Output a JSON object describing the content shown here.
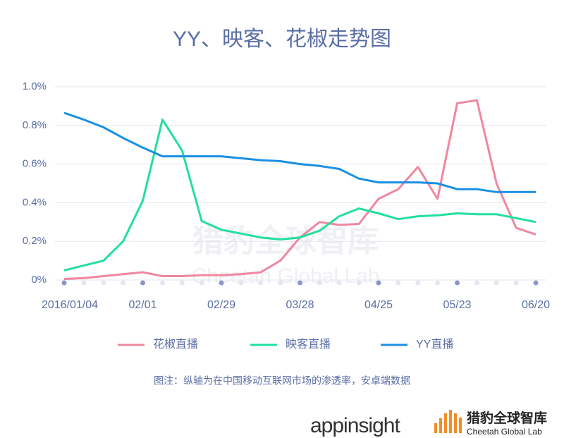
{
  "chart_data": {
    "type": "line",
    "title": "YY、映客、花椒走势图",
    "categories": [
      "2016/01/04",
      null,
      null,
      null,
      "02/01",
      null,
      null,
      null,
      "02/29",
      null,
      null,
      null,
      "03/28",
      null,
      null,
      null,
      "04/25",
      null,
      null,
      null,
      "05/23",
      null,
      null,
      null,
      "06/20"
    ],
    "series": [
      {
        "name": "花椒直播",
        "color": "#f0879f",
        "values": [
          0.005,
          0.01,
          0.02,
          0.03,
          0.04,
          0.02,
          0.02,
          0.025,
          0.025,
          0.03,
          0.04,
          0.1,
          0.22,
          0.3,
          0.285,
          0.29,
          0.42,
          0.47,
          0.585,
          0.42,
          0.915,
          0.93,
          0.5,
          0.27,
          0.235
        ]
      },
      {
        "name": "映客直播",
        "color": "#22e09c",
        "values": [
          0.05,
          0.075,
          0.1,
          0.2,
          0.41,
          0.83,
          0.67,
          0.305,
          0.26,
          0.24,
          0.22,
          0.21,
          0.22,
          0.255,
          0.33,
          0.37,
          0.345,
          0.315,
          0.33,
          0.335,
          0.345,
          0.34,
          0.34,
          0.32,
          0.3
        ]
      },
      {
        "name": "YY直播",
        "color": "#1a8fe3",
        "values": [
          0.865,
          0.83,
          0.79,
          0.735,
          0.685,
          0.64,
          0.64,
          0.64,
          0.64,
          0.63,
          0.62,
          0.615,
          0.6,
          0.59,
          0.575,
          0.525,
          0.505,
          0.505,
          0.505,
          0.5,
          0.47,
          0.47,
          0.455,
          0.455,
          0.455
        ]
      }
    ],
    "ylim": [
      0,
      1
    ],
    "yticks": [
      {
        "value": 0,
        "label": "0%"
      },
      {
        "value": 0.2,
        "label": "0.2%"
      },
      {
        "value": 0.4,
        "label": "0.4%"
      },
      {
        "value": 0.6,
        "label": "0.6%"
      },
      {
        "value": 0.8,
        "label": "0.8%"
      },
      {
        "value": 1,
        "label": "1.0%"
      }
    ],
    "grid": true,
    "note": "图注：纵轴为在中国移动互联网市场的渗透率，安卓端数据"
  },
  "branding": {
    "logo": "appinsight",
    "lab": "猎豹全球智库",
    "lab_en": "Cheetah Global Lab"
  }
}
